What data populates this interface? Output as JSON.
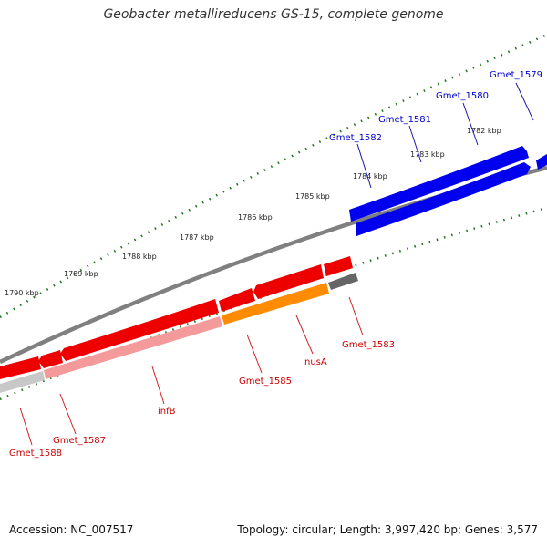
{
  "title": "Geobacter metallireducens GS-15, complete genome",
  "accession": "Accession: NC_007517",
  "topology": "Topology: circular; Length: 3,997,420 bp; Genes: 3,577",
  "colors": {
    "forward_gene": "#0000ee",
    "reverse_gene": "#ee0000",
    "forward_label": "#0000cc",
    "reverse_label": "#cc0000",
    "backbone": "#808080",
    "tick": "#227722",
    "orf_track": "#ff8c00",
    "gc_track": "#666666"
  },
  "scale": {
    "unit": "kbp",
    "labels": [
      {
        "kbp": 1782,
        "text": "1782 kbp"
      },
      {
        "kbp": 1783,
        "text": "1783 kbp"
      },
      {
        "kbp": 1784,
        "text": "1784 kbp"
      },
      {
        "kbp": 1785,
        "text": "1785 kbp"
      },
      {
        "kbp": 1786,
        "text": "1786 kbp"
      },
      {
        "kbp": 1787,
        "text": "1787 kbp"
      },
      {
        "kbp": 1788,
        "text": "1788 kbp"
      },
      {
        "kbp": 1789,
        "text": "1789 kbp"
      },
      {
        "kbp": 1790,
        "text": "1790 kbp"
      }
    ]
  },
  "forward_genes": [
    {
      "name": "Gmet_1579",
      "label": "Gmet_1579"
    },
    {
      "name": "Gmet_1580",
      "label": "Gmet_1580"
    },
    {
      "name": "Gmet_1581",
      "label": "Gmet_1581"
    },
    {
      "name": "Gmet_1582",
      "label": "Gmet_1582"
    }
  ],
  "reverse_genes": [
    {
      "name": "Gmet_1583",
      "label": "Gmet_1583"
    },
    {
      "name": "nusA",
      "label": "nusA"
    },
    {
      "name": "Gmet_1585",
      "label": "Gmet_1585"
    },
    {
      "name": "infB",
      "label": "infB"
    },
    {
      "name": "Gmet_1587",
      "label": "Gmet_1587"
    },
    {
      "name": "Gmet_1588",
      "label": "Gmet_1588"
    }
  ]
}
